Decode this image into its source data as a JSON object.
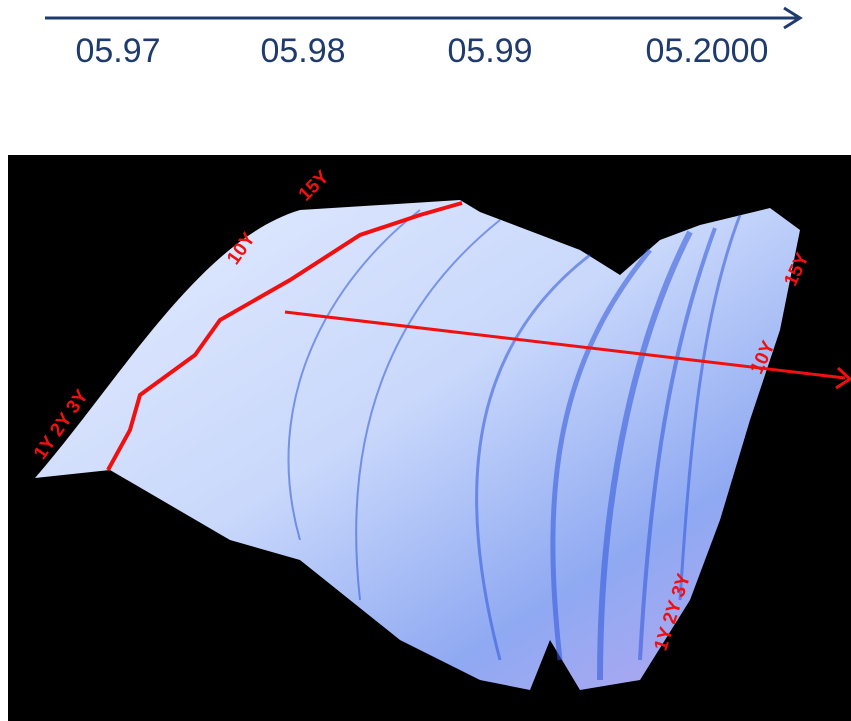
{
  "timeline": {
    "labels": [
      "05.97",
      "05.98",
      "05.99",
      "05.2000"
    ]
  },
  "surface": {
    "labels": {
      "top_15y": "15Y",
      "top_10y": "10Y",
      "left_short": "1Y 2Y 3Y",
      "right_15y": "15Y",
      "right_10y": "10Y",
      "bottom_short": "1Y 2Y 3Y"
    }
  }
}
